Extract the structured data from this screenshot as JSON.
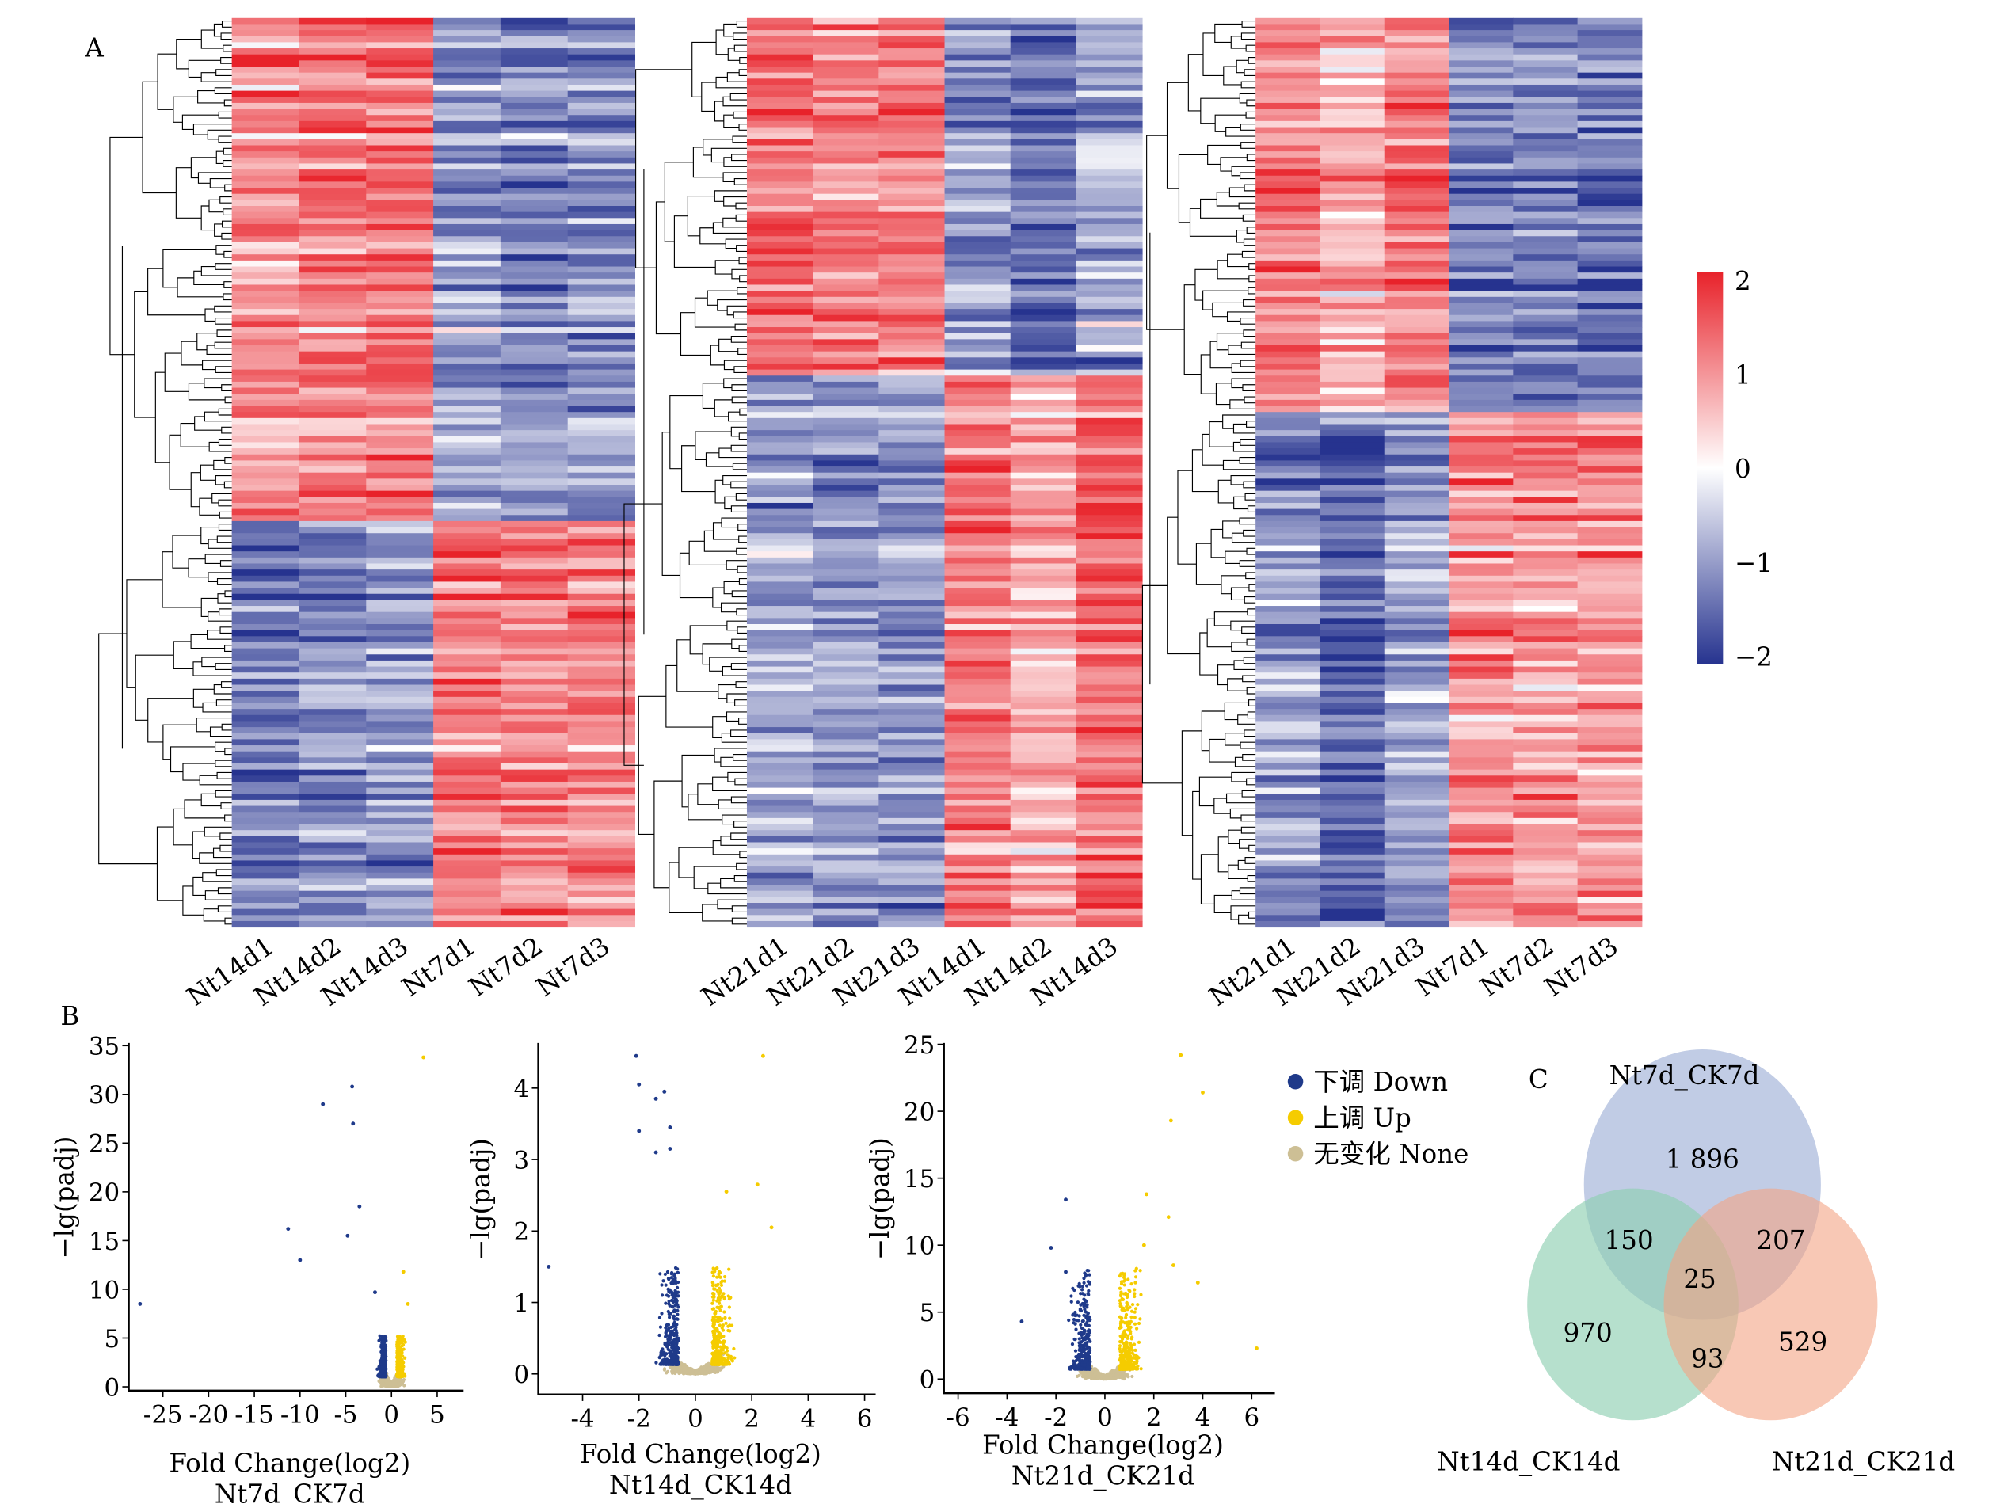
{
  "panel_labels": {
    "a": "A",
    "b": "B",
    "c": "C"
  },
  "colors": {
    "high": "#e8222a",
    "mid": "#ffffff",
    "low": "#26338f",
    "down": "#1f3a8a",
    "up": "#f5cc00",
    "none": "#cdbf95",
    "venn_a": "#a7b6da",
    "venn_b": "#8fcfb2",
    "venn_c": "#f4a483"
  },
  "chart_data": [
    {
      "type": "heatmap",
      "columns": [
        "Nt14d1",
        "Nt14d2",
        "Nt14d3",
        "Nt7d1",
        "Nt7d2",
        "Nt7d3"
      ],
      "clusters": [
        {
          "rows_fraction": 0.55,
          "high_columns": [
            "Nt14d1",
            "Nt14d2",
            "Nt14d3"
          ]
        },
        {
          "rows_fraction": 0.45,
          "high_columns": [
            "Nt7d1",
            "Nt7d2",
            "Nt7d3"
          ]
        }
      ],
      "dendrogram": "rows"
    },
    {
      "type": "heatmap",
      "columns": [
        "Nt21d1",
        "Nt21d2",
        "Nt21d3",
        "Nt14d1",
        "Nt14d2",
        "Nt14d3"
      ],
      "clusters": [
        {
          "rows_fraction": 0.39,
          "high_columns": [
            "Nt21d1",
            "Nt21d2",
            "Nt21d3"
          ]
        },
        {
          "rows_fraction": 0.61,
          "high_columns": [
            "Nt14d1",
            "Nt14d2",
            "Nt14d3"
          ]
        }
      ],
      "dendrogram": "rows"
    },
    {
      "type": "heatmap",
      "columns": [
        "Nt21d1",
        "Nt21d2",
        "Nt21d3",
        "Nt7d1",
        "Nt7d2",
        "Nt7d3"
      ],
      "clusters": [
        {
          "rows_fraction": 0.43,
          "high_columns": [
            "Nt21d1",
            "Nt21d2",
            "Nt21d3"
          ]
        },
        {
          "rows_fraction": 0.57,
          "high_columns": [
            "Nt7d1",
            "Nt7d2",
            "Nt7d3"
          ]
        }
      ],
      "dendrogram": "rows"
    },
    {
      "type": "colorbar",
      "range": [
        -2,
        2
      ],
      "ticks": [
        "2",
        "1",
        "0",
        "−1",
        "−2"
      ]
    },
    {
      "type": "scatter",
      "xlabel": "Fold Change(log2)",
      "subtitle": "Nt7d_CK7d",
      "ylabel": "−lg(padj)",
      "xlim": [
        -28,
        8
      ],
      "ylim": [
        0,
        35
      ],
      "xticks": [
        "-25",
        "-20",
        "-15",
        "-10",
        "-5",
        "0",
        "5"
      ],
      "yticks": [
        "0",
        "5",
        "10",
        "15",
        "20",
        "25",
        "30",
        "35"
      ],
      "outliers": [
        [
          -27.5,
          8.5
        ],
        [
          -11.3,
          16.2
        ],
        [
          -7.5,
          29
        ],
        [
          -4.3,
          30.8
        ],
        [
          -4.2,
          27
        ],
        [
          -3.5,
          18.5
        ],
        [
          -4.8,
          15.5
        ],
        [
          -10,
          13
        ],
        [
          -1.8,
          9.7
        ],
        [
          1.3,
          11.8
        ],
        [
          1.8,
          8.5
        ],
        [
          3.5,
          33.8
        ]
      ]
    },
    {
      "type": "scatter",
      "xlabel": "Fold Change(log2)",
      "subtitle": "Nt14d_CK14d",
      "ylabel": "−lg(padj)",
      "xlim": [
        -5.5,
        6
      ],
      "ylim": [
        0,
        4.5
      ],
      "xticks": [
        "-4",
        "-2",
        "0",
        "2",
        "4",
        "6"
      ],
      "yticks": [
        "0",
        "1",
        "2",
        "3",
        "4"
      ],
      "outliers": [
        [
          -2.1,
          4.45
        ],
        [
          -2,
          4.05
        ],
        [
          -1.1,
          3.95
        ],
        [
          -1.4,
          3.85
        ],
        [
          -2,
          3.4
        ],
        [
          -0.9,
          3.45
        ],
        [
          -1.4,
          3.1
        ],
        [
          -0.9,
          3.15
        ],
        [
          -5.2,
          1.5
        ],
        [
          2.4,
          4.45
        ],
        [
          2.2,
          2.65
        ],
        [
          2.7,
          2.05
        ],
        [
          1.1,
          2.55
        ]
      ]
    },
    {
      "type": "scatter",
      "xlabel": "Fold Change(log2)",
      "subtitle": "Nt21d_CK21d",
      "ylabel": "−lg(padj)",
      "xlim": [
        -6.5,
        6.5
      ],
      "ylim": [
        0,
        25
      ],
      "xticks": [
        "-6",
        "-4",
        "-2",
        "0",
        "2",
        "4",
        "6"
      ],
      "yticks": [
        "0",
        "5",
        "10",
        "15",
        "20",
        "25"
      ],
      "outliers": [
        [
          -1.6,
          13.4
        ],
        [
          -2.2,
          9.8
        ],
        [
          -1.6,
          8
        ],
        [
          -1.3,
          4.8
        ],
        [
          -3.4,
          4.3
        ],
        [
          3.1,
          24.2
        ],
        [
          4,
          21.4
        ],
        [
          2.7,
          19.3
        ],
        [
          1.7,
          13.8
        ],
        [
          2.6,
          12.1
        ],
        [
          1.6,
          10
        ],
        [
          2.8,
          8.5
        ],
        [
          3.8,
          7.2
        ],
        [
          6.2,
          2.3
        ]
      ]
    },
    {
      "type": "legend",
      "entries": [
        {
          "label": "下调 Down",
          "color_key": "down"
        },
        {
          "label": "上调 Up",
          "color_key": "up"
        },
        {
          "label": "无变化 None",
          "color_key": "none"
        }
      ]
    },
    {
      "type": "venn",
      "sets": [
        "Nt7d_CK7d",
        "Nt14d_CK14d",
        "Nt21d_CK21d"
      ],
      "regions": {
        "only_7d": "1 896",
        "7d_14d": "150",
        "7d_21d": "207",
        "all": "25",
        "only_14d": "970",
        "14d_21d": "93",
        "only_21d": "529"
      }
    }
  ]
}
